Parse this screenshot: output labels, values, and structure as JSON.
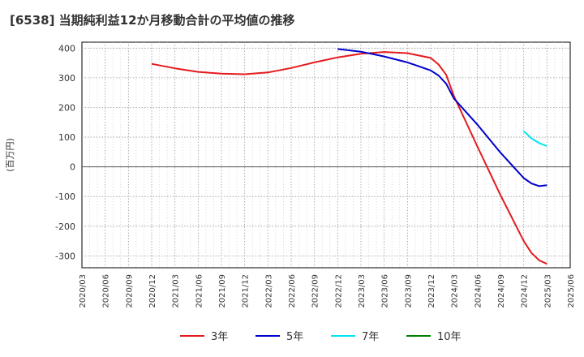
{
  "chart_data": {
    "type": "line",
    "title": "[6538]  当期純利益12か月移動合計の平均値の推移",
    "ylabel": "(百万円)",
    "xlabel": "",
    "ylim": [
      -340,
      420
    ],
    "yticks": [
      400,
      300,
      200,
      100,
      0,
      -100,
      -200,
      -300
    ],
    "categories": [
      "2020/03",
      "2020/06",
      "2020/09",
      "2020/12",
      "2021/03",
      "2021/06",
      "2021/09",
      "2021/12",
      "2022/03",
      "2022/06",
      "2022/09",
      "2022/12",
      "2023/03",
      "2023/06",
      "2023/09",
      "2023/12",
      "2024/03",
      "2024/06",
      "2024/09",
      "2024/12",
      "2025/03",
      "2025/06"
    ],
    "grid": true,
    "legend_position": "bottom",
    "series": [
      {
        "name": "3年",
        "color": "#e41a1c",
        "points": [
          [
            "2020/12",
            347
          ],
          [
            "2021/03",
            332
          ],
          [
            "2021/06",
            320
          ],
          [
            "2021/09",
            314
          ],
          [
            "2021/12",
            312
          ],
          [
            "2022/03",
            318
          ],
          [
            "2022/06",
            333
          ],
          [
            "2022/09",
            352
          ],
          [
            "2022/12",
            369
          ],
          [
            "2023/03",
            381
          ],
          [
            "2023/06",
            387
          ],
          [
            "2023/09",
            383
          ],
          [
            "2023/12",
            367
          ],
          [
            "2024/01",
            345
          ],
          [
            "2024/02",
            310
          ],
          [
            "2024/03",
            238
          ],
          [
            "2024/06",
            70
          ],
          [
            "2024/09",
            -95
          ],
          [
            "2024/12",
            -250
          ],
          [
            "2025/01",
            -290
          ],
          [
            "2025/02",
            -315
          ],
          [
            "2025/03",
            -327
          ]
        ]
      },
      {
        "name": "5年",
        "color": "#0000cc",
        "points": [
          [
            "2022/12",
            397
          ],
          [
            "2023/03",
            388
          ],
          [
            "2023/06",
            372
          ],
          [
            "2023/09",
            352
          ],
          [
            "2023/12",
            325
          ],
          [
            "2024/01",
            308
          ],
          [
            "2024/02",
            280
          ],
          [
            "2024/03",
            230
          ],
          [
            "2024/06",
            143
          ],
          [
            "2024/09",
            48
          ],
          [
            "2024/12",
            -38
          ],
          [
            "2025/01",
            -56
          ],
          [
            "2025/02",
            -65
          ],
          [
            "2025/03",
            -62
          ]
        ]
      },
      {
        "name": "7年",
        "color": "#00e5ee",
        "points": [
          [
            "2024/12",
            120
          ],
          [
            "2025/01",
            96
          ],
          [
            "2025/02",
            80
          ],
          [
            "2025/03",
            70
          ]
        ]
      },
      {
        "name": "10年",
        "color": "#008000",
        "points": []
      }
    ]
  }
}
